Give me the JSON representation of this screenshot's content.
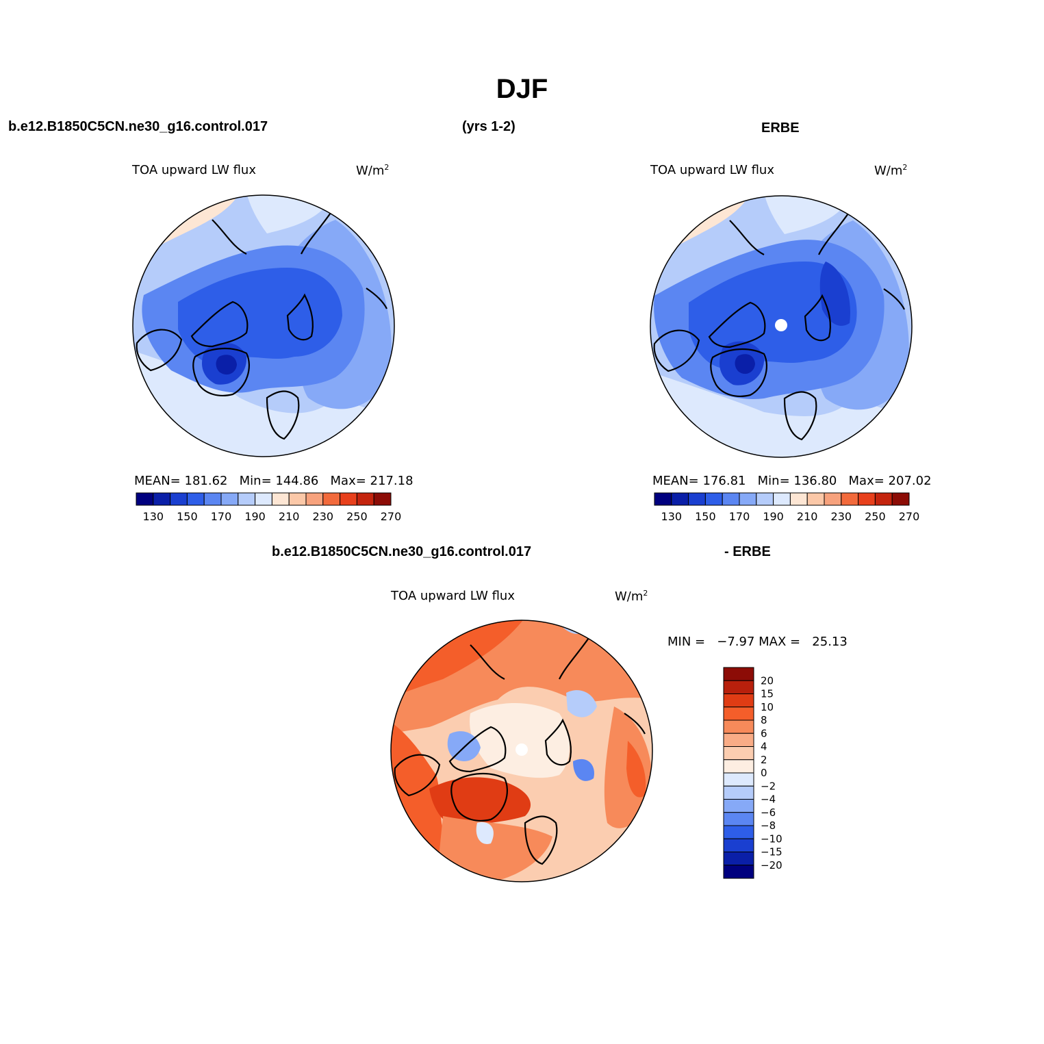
{
  "page": {
    "season": "DJF",
    "case_name": "b.e12.B1850C5CN.ne30_g16.control.017",
    "years": "(yrs 1-2)",
    "obs_name": "ERBE",
    "diff_case_name": "b.e12.B1850C5CN.ne30_g16.control.017",
    "diff_obs_name": "- ERBE"
  },
  "panels": {
    "model": {
      "variable": "TOA upward LW flux",
      "units": "W/m",
      "units_sup": "2",
      "stats": "MEAN= 181.62   Min= 144.86   Max= 217.18"
    },
    "obs": {
      "variable": "TOA upward LW flux",
      "units": "W/m",
      "units_sup": "2",
      "stats": "MEAN= 176.81   Min= 136.80   Max= 207.02"
    },
    "diff": {
      "variable": "TOA upward LW flux",
      "units": "W/m",
      "units_sup": "2",
      "stats": "MIN =   −7.97 MAX =   25.13"
    }
  },
  "colorbars": {
    "abs": {
      "colors": [
        "#00007f",
        "#0a1fa8",
        "#1a3fd0",
        "#2e5ee8",
        "#5b86f2",
        "#86a9f7",
        "#b5ccfa",
        "#dde9fd",
        "#fde6d4",
        "#fbc8a8",
        "#f7a27d",
        "#f26a3c",
        "#e8401c",
        "#c4240e",
        "#8c0c06"
      ],
      "labels": [
        "130",
        "150",
        "170",
        "190",
        "210",
        "230",
        "250",
        "270"
      ]
    },
    "diff": {
      "colors": [
        "#8c0c06",
        "#b8200c",
        "#e03c14",
        "#f45e2a",
        "#f78a5a",
        "#f9ac86",
        "#fbcdb0",
        "#fdeee2",
        "#dde9fd",
        "#b5ccfa",
        "#86a9f7",
        "#5b86f2",
        "#2e5ee8",
        "#1a3fd0",
        "#0a1fa8",
        "#00007f"
      ],
      "labels": [
        "20",
        "15",
        "10",
        "8",
        "6",
        "4",
        "2",
        "0",
        "−2",
        "−4",
        "−6",
        "−8",
        "−10",
        "−15",
        "−20"
      ]
    }
  }
}
